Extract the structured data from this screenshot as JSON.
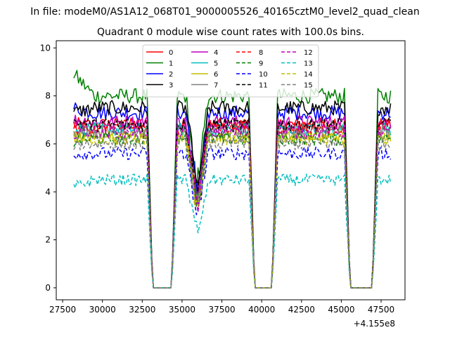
{
  "chart_data": {
    "type": "line",
    "suptitle": "In file: modeM0/AS1A12_068T01_9000005526_40165cztM0_level2_quad_clean",
    "title": "Quadrant 0 module wise count rates with 100.0s bins.",
    "xlabel": "",
    "ylabel": "",
    "x_offset_label": "+4.155e8",
    "xlim": [
      27100,
      49000
    ],
    "ylim": [
      -0.5,
      10.3
    ],
    "xticks": [
      27500,
      30000,
      32500,
      35000,
      37500,
      40000,
      42500,
      45000,
      47500
    ],
    "xtick_labels": [
      "27500",
      "30000",
      "32500",
      "35000",
      "37500",
      "40000",
      "42500",
      "45000",
      "47500"
    ],
    "yticks": [
      0,
      2,
      4,
      6,
      8,
      10
    ],
    "ytick_labels": [
      "0",
      "2",
      "4",
      "6",
      "8",
      "10"
    ],
    "x_start": 28200,
    "x_end": 48100,
    "bin_s": 100,
    "gaps": [
      [
        33100,
        34400
      ],
      [
        39500,
        40700
      ],
      [
        45500,
        47000
      ]
    ],
    "dip_center": 35950,
    "legend_location": "upper center",
    "legend_columns": 4,
    "series": [
      {
        "name": "0",
        "color": "#ff0000",
        "style": "solid",
        "level": 6.8,
        "start": 6.8
      },
      {
        "name": "1",
        "color": "#008000",
        "style": "solid",
        "level": 8.0,
        "start": 8.9
      },
      {
        "name": "2",
        "color": "#0000ff",
        "style": "solid",
        "level": 7.3,
        "start": 7.5
      },
      {
        "name": "3",
        "color": "#000000",
        "style": "solid",
        "level": 7.5,
        "start": 7.3
      },
      {
        "name": "4",
        "color": "#bf00bf",
        "style": "solid",
        "level": 6.9,
        "start": 7.0
      },
      {
        "name": "5",
        "color": "#00bfbf",
        "style": "solid",
        "level": 6.6,
        "start": 6.6
      },
      {
        "name": "6",
        "color": "#bfbf00",
        "style": "solid",
        "level": 6.3,
        "start": 6.3
      },
      {
        "name": "7",
        "color": "#808080",
        "style": "solid",
        "level": 6.5,
        "start": 6.5
      },
      {
        "name": "8",
        "color": "#ff0000",
        "style": "dashed",
        "level": 6.7,
        "start": 6.7
      },
      {
        "name": "9",
        "color": "#008000",
        "style": "dashed",
        "level": 6.2,
        "start": 6.1
      },
      {
        "name": "10",
        "color": "#0000ff",
        "style": "dashed",
        "level": 5.6,
        "start": 5.6
      },
      {
        "name": "11",
        "color": "#000000",
        "style": "dashed",
        "level": 6.8,
        "start": 6.9
      },
      {
        "name": "12",
        "color": "#bf00bf",
        "style": "dashed",
        "level": 6.5,
        "start": 6.5
      },
      {
        "name": "13",
        "color": "#00bfbf",
        "style": "dashed",
        "level": 4.5,
        "start": 4.2
      },
      {
        "name": "14",
        "color": "#bfbf00",
        "style": "dashed",
        "level": 6.2,
        "start": 6.2
      },
      {
        "name": "15",
        "color": "#808080",
        "style": "dashed",
        "level": 6.0,
        "start": 6.0
      }
    ]
  }
}
